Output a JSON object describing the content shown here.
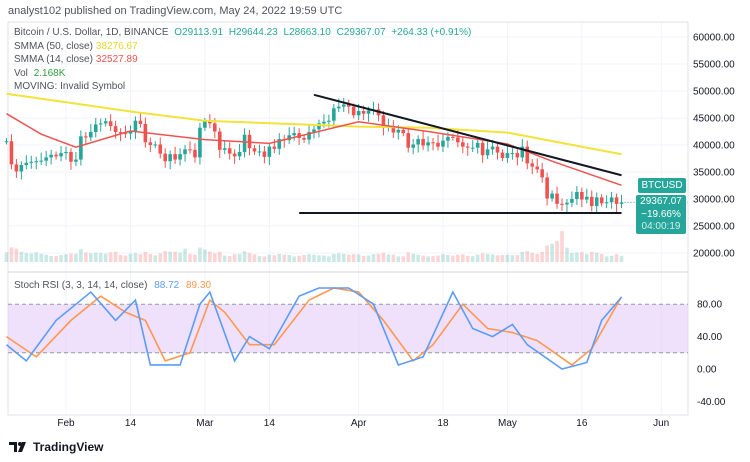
{
  "header": {
    "published": "analyst102 published on TradingView.com, May 24, 2022 19:59 UTC"
  },
  "legend": {
    "symbol": "Bitcoin / U.S. Dollar, 1D, BINANCE",
    "o": "O29113.91",
    "h": "H29644.23",
    "l": "L28663.10",
    "c": "C29367.07",
    "chg": "+264.33 (+0.91%)",
    "smma50_label": "SMMA (50, close)",
    "smma50_val": "38276.67",
    "smma14_label": "SMMA (14, close)",
    "smma14_val": "32527.89",
    "vol_label": "Vol",
    "vol_val": "2.168K",
    "moving": "MOVING: Invalid Symbol"
  },
  "stoch_legend": {
    "label": "Stoch RSI (3, 3, 14, 14, close)",
    "k": "88.72",
    "d": "89.30"
  },
  "price_tag": {
    "symbol": "BTCUSD",
    "price": "29367.07",
    "change": "−19.66%",
    "countdown": "04:00:19"
  },
  "logo": "TradingView",
  "colors": {
    "up": "#26a69a",
    "down": "#ef5350",
    "smma50": "#f5e83b",
    "smma14": "#ef5350",
    "k": "#5b9cf6",
    "d": "#ff9850",
    "band": "#e1c7fa"
  },
  "chart_data": {
    "type": "candlestick",
    "start_date": "2022-01-20",
    "closes": [
      40.7,
      36.4,
      35.1,
      36.3,
      36.7,
      36.9,
      37.0,
      37.1,
      37.7,
      38.2,
      37.9,
      38.5,
      38.7,
      36.9,
      37.3,
      41.6,
      41.4,
      42.4,
      43.8,
      44.0,
      44.4,
      43.5,
      42.4,
      42.2,
      42.1,
      42.5,
      44.5,
      43.9,
      40.5,
      40.0,
      40.1,
      38.4,
      37.0,
      38.3,
      37.3,
      38.3,
      39.2,
      39.1,
      37.7,
      43.2,
      44.4,
      44.0,
      42.5,
      39.1,
      39.4,
      38.4,
      37.9,
      38.7,
      41.9,
      39.4,
      38.8,
      38.8,
      37.8,
      39.7,
      39.3,
      41.1,
      40.9,
      41.8,
      42.2,
      41.3,
      41.0,
      42.4,
      42.9,
      44.0,
      44.3,
      44.5,
      46.8,
      47.1,
      47.5,
      47.1,
      45.5,
      46.3,
      45.8,
      46.4,
      46.6,
      45.5,
      43.2,
      43.4,
      42.3,
      42.8,
      42.2,
      39.5,
      40.1,
      41.1,
      39.9,
      40.5,
      40.4,
      39.7,
      40.8,
      41.5,
      41.4,
      40.5,
      39.7,
      39.5,
      39.5,
      40.4,
      38.1,
      39.2,
      39.7,
      38.6,
      37.6,
      38.5,
      38.5,
      37.7,
      39.7,
      36.6,
      36.0,
      35.5,
      34.0,
      30.1,
      31.0,
      29.1,
      29.0,
      29.3,
      30.0,
      31.3,
      29.9,
      30.4,
      28.7,
      30.3,
      29.2,
      29.4,
      30.3,
      29.1,
      29.37
    ],
    "volumes_k": [
      3.5,
      5.2,
      4.8,
      3.6,
      3.2,
      3.0,
      3.4,
      2.9,
      2.6,
      2.2,
      2.1,
      2.5,
      2.8,
      3.0,
      2.9,
      4.6,
      3.4,
      3.1,
      3.3,
      3.2,
      3.0,
      3.4,
      3.6,
      2.5,
      2.3,
      3.0,
      3.2,
      2.8,
      3.6,
      2.9,
      2.4,
      3.1,
      3.9,
      3.7,
      3.6,
      3.3,
      4.8,
      2.9,
      2.6,
      5.2,
      4.5,
      3.7,
      3.1,
      3.6,
      2.3,
      2.1,
      2.8,
      2.9,
      3.8,
      3.2,
      2.7,
      2.1,
      2.0,
      2.6,
      2.4,
      2.9,
      2.6,
      2.5,
      2.0,
      2.2,
      2.5,
      2.8,
      2.6,
      2.4,
      2.3,
      2.0,
      2.9,
      3.1,
      2.9,
      2.6,
      2.8,
      2.7,
      2.2,
      2.3,
      2.8,
      2.9,
      3.3,
      2.7,
      2.6,
      2.0,
      2.0,
      3.4,
      2.9,
      2.6,
      2.3,
      2.0,
      2.1,
      2.3,
      2.8,
      2.5,
      2.3,
      2.6,
      2.7,
      2.2,
      2.1,
      2.6,
      3.1,
      2.9,
      2.7,
      2.4,
      2.5,
      2.6,
      2.4,
      2.5,
      3.6,
      3.8,
      3.2,
      2.9,
      3.6,
      5.9,
      6.5,
      7.5,
      11.0,
      5.1,
      3.2,
      3.4,
      3.5,
      2.9,
      3.6,
      3.3,
      2.9,
      2.0,
      2.2,
      2.8,
      2.2
    ],
    "smma50": [
      [
        "2022-01-20",
        49.5
      ],
      [
        "2022-02-14",
        46.2
      ],
      [
        "2022-03-01",
        44.5
      ],
      [
        "2022-04-01",
        43.4
      ],
      [
        "2022-04-15",
        43.2
      ],
      [
        "2022-05-01",
        42.3
      ],
      [
        "2022-05-24",
        38.28
      ]
    ],
    "smma14": [
      [
        "2022-01-20",
        45.8
      ],
      [
        "2022-01-27",
        42.0
      ],
      [
        "2022-02-03",
        39.6
      ],
      [
        "2022-02-14",
        42.6
      ],
      [
        "2022-03-01",
        41.0
      ],
      [
        "2022-03-14",
        40.3
      ],
      [
        "2022-04-01",
        44.3
      ],
      [
        "2022-04-15",
        42.5
      ],
      [
        "2022-05-01",
        40.2
      ],
      [
        "2022-05-10",
        37.0
      ],
      [
        "2022-05-24",
        32.53
      ]
    ],
    "stoch_k": [
      [
        "2022-01-20",
        30
      ],
      [
        "2022-01-24",
        10
      ],
      [
        "2022-01-30",
        60
      ],
      [
        "2022-02-06",
        95
      ],
      [
        "2022-02-11",
        60
      ],
      [
        "2022-02-15",
        85
      ],
      [
        "2022-02-18",
        5
      ],
      [
        "2022-02-24",
        5
      ],
      [
        "2022-02-28",
        80
      ],
      [
        "2022-03-02",
        95
      ],
      [
        "2022-03-07",
        10
      ],
      [
        "2022-03-10",
        40
      ],
      [
        "2022-03-14",
        25
      ],
      [
        "2022-03-20",
        90
      ],
      [
        "2022-03-24",
        100
      ],
      [
        "2022-03-30",
        100
      ],
      [
        "2022-04-04",
        80
      ],
      [
        "2022-04-09",
        5
      ],
      [
        "2022-04-14",
        15
      ],
      [
        "2022-04-20",
        95
      ],
      [
        "2022-04-24",
        50
      ],
      [
        "2022-04-28",
        40
      ],
      [
        "2022-05-02",
        55
      ],
      [
        "2022-05-05",
        30
      ],
      [
        "2022-05-12",
        0
      ],
      [
        "2022-05-17",
        8
      ],
      [
        "2022-05-20",
        60
      ],
      [
        "2022-05-24",
        88.72
      ]
    ],
    "stoch_d": [
      [
        "2022-01-20",
        40
      ],
      [
        "2022-01-26",
        15
      ],
      [
        "2022-02-02",
        60
      ],
      [
        "2022-02-08",
        90
      ],
      [
        "2022-02-13",
        70
      ],
      [
        "2022-02-17",
        60
      ],
      [
        "2022-02-21",
        10
      ],
      [
        "2022-02-26",
        20
      ],
      [
        "2022-03-02",
        85
      ],
      [
        "2022-03-05",
        70
      ],
      [
        "2022-03-10",
        30
      ],
      [
        "2022-03-15",
        30
      ],
      [
        "2022-03-22",
        85
      ],
      [
        "2022-03-27",
        100
      ],
      [
        "2022-04-01",
        95
      ],
      [
        "2022-04-06",
        60
      ],
      [
        "2022-04-12",
        10
      ],
      [
        "2022-04-16",
        30
      ],
      [
        "2022-04-22",
        80
      ],
      [
        "2022-04-27",
        50
      ],
      [
        "2022-05-02",
        45
      ],
      [
        "2022-05-07",
        35
      ],
      [
        "2022-05-14",
        5
      ],
      [
        "2022-05-18",
        25
      ],
      [
        "2022-05-24",
        89.3
      ]
    ],
    "trendline_down": [
      [
        "2022-03-23",
        49.3
      ],
      [
        "2022-05-24",
        34.4
      ]
    ],
    "support_line": [
      [
        "2022-03-20",
        27.4
      ],
      [
        "2022-05-24",
        27.4
      ]
    ],
    "price_axis": [
      "60000.00",
      "55000.00",
      "50000.00",
      "45000.00",
      "40000.00",
      "35000.00",
      "30000.00",
      "25000.00",
      "20000.00"
    ],
    "stoch_axis": [
      "80.00",
      "40.00",
      "0.00",
      "-40.00"
    ],
    "stoch_bands": [
      20,
      80
    ],
    "time_axis": [
      [
        "Feb",
        "2022-02-01"
      ],
      [
        "14",
        "2022-02-14"
      ],
      [
        "Mar",
        "2022-03-01"
      ],
      [
        "14",
        "2022-03-14"
      ],
      [
        "Apr",
        "2022-04-01"
      ],
      [
        "18",
        "2022-04-18"
      ],
      [
        "May",
        "2022-05-01"
      ],
      [
        "16",
        "2022-05-16"
      ],
      [
        "Jun",
        "2022-06-01"
      ]
    ],
    "price_unit": "thousand USD"
  }
}
